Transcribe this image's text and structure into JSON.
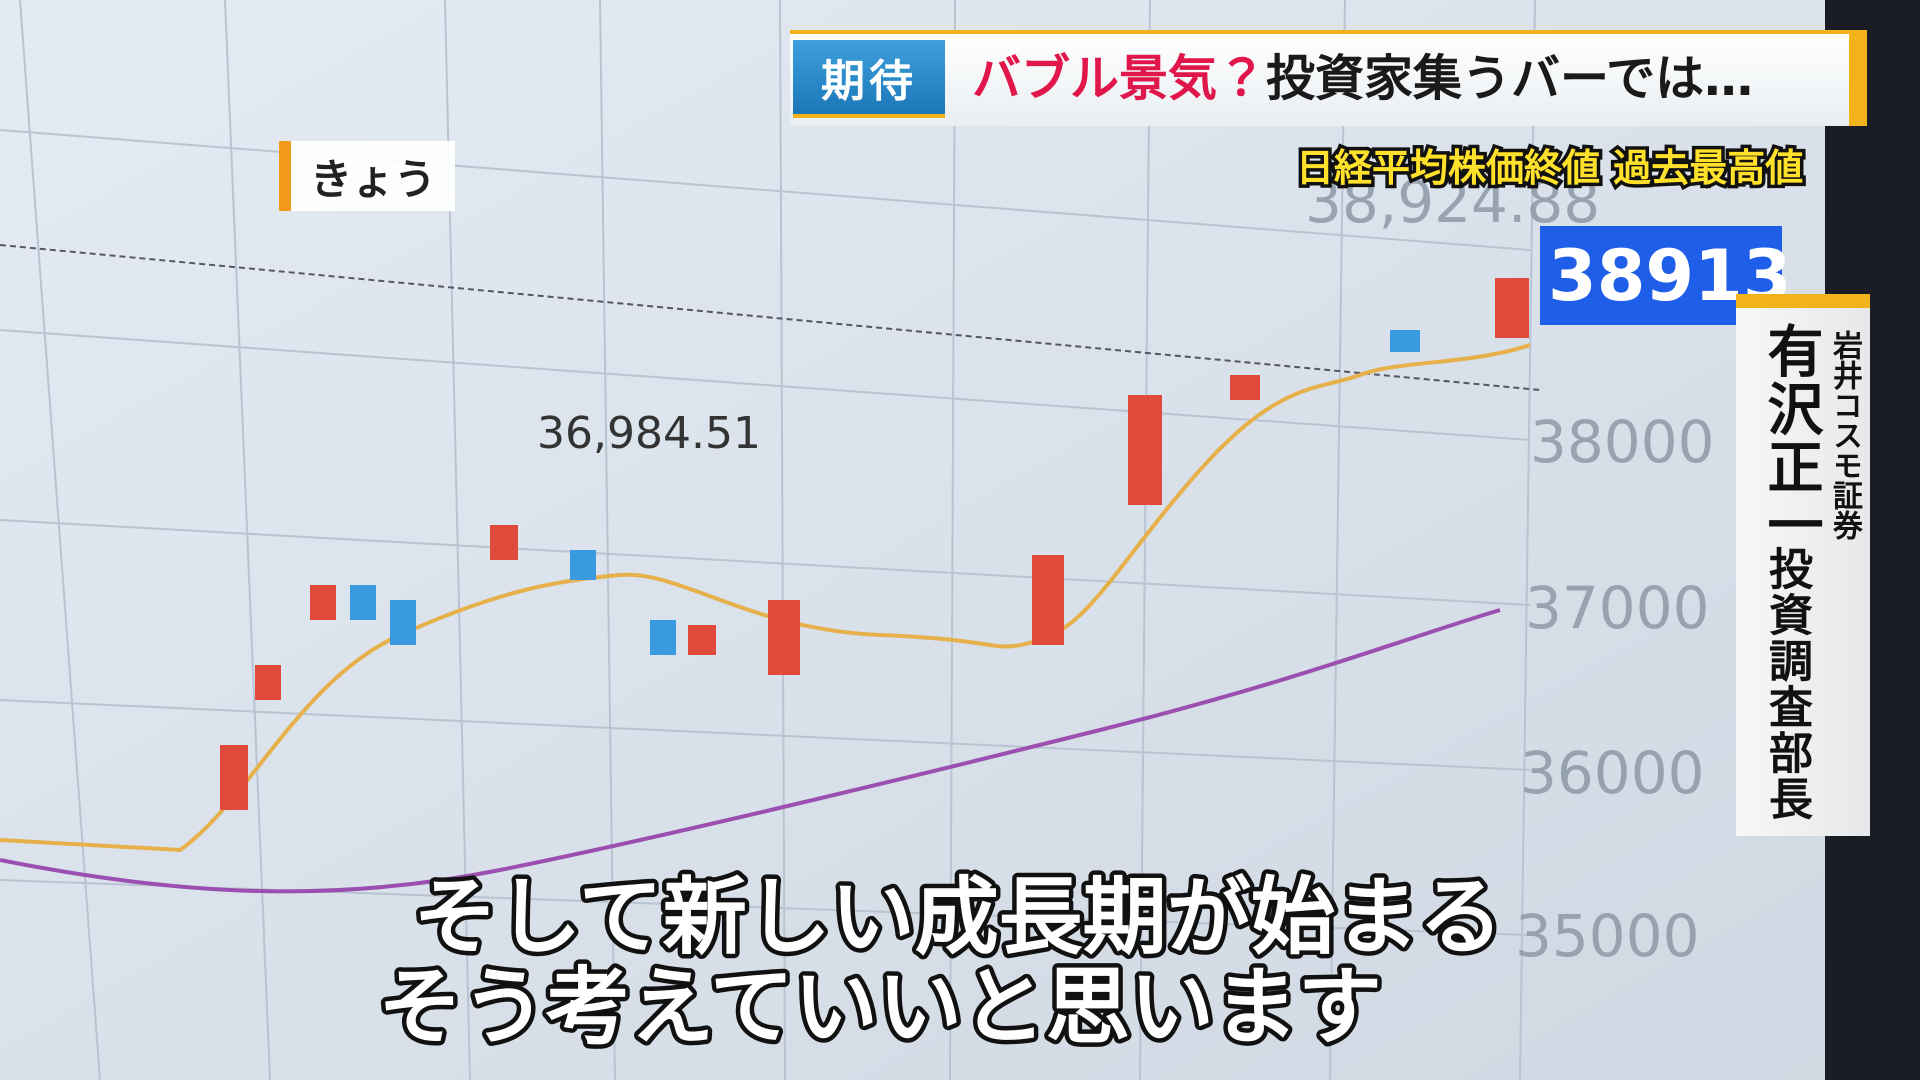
{
  "headline": {
    "tag": "期待",
    "title_highlight": "バブル景気？",
    "title_rest": "投資家集うバーでは…"
  },
  "subheadline": "日経平均株価終値 過去最高値",
  "location_label": "きょう",
  "speaker": {
    "affiliation": "岩井コスモ証券",
    "name": "有沢正一",
    "role": "投資調査部長"
  },
  "subtitles": [
    "そして新しい成長期が始まる",
    "そう考えていいと思います"
  ],
  "background_screen": {
    "high_label": "38,924.88",
    "current_price": "38913",
    "previous_peak_label": "36,984.51",
    "axis_labels": [
      "38000",
      "37000",
      "36000",
      "35000"
    ]
  }
}
